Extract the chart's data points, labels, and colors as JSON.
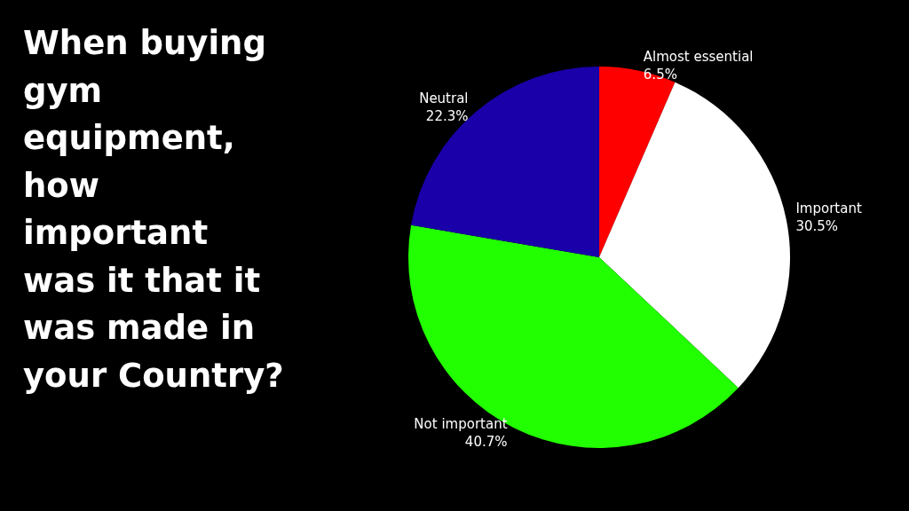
{
  "chart_data": {
    "type": "pie",
    "title": "When buying gym equipment, how important was it that it was made in your Country?",
    "categories": [
      "Almost essential",
      "Important",
      "Not important",
      "Neutral"
    ],
    "values": [
      6.5,
      30.5,
      40.7,
      22.3
    ],
    "colors": [
      "#ff0000",
      "#ffffff",
      "#22ff00",
      "#1a00a8"
    ],
    "value_labels": [
      "6.5%",
      "30.5%",
      "40.7%",
      "22.3%"
    ],
    "legend": false
  }
}
